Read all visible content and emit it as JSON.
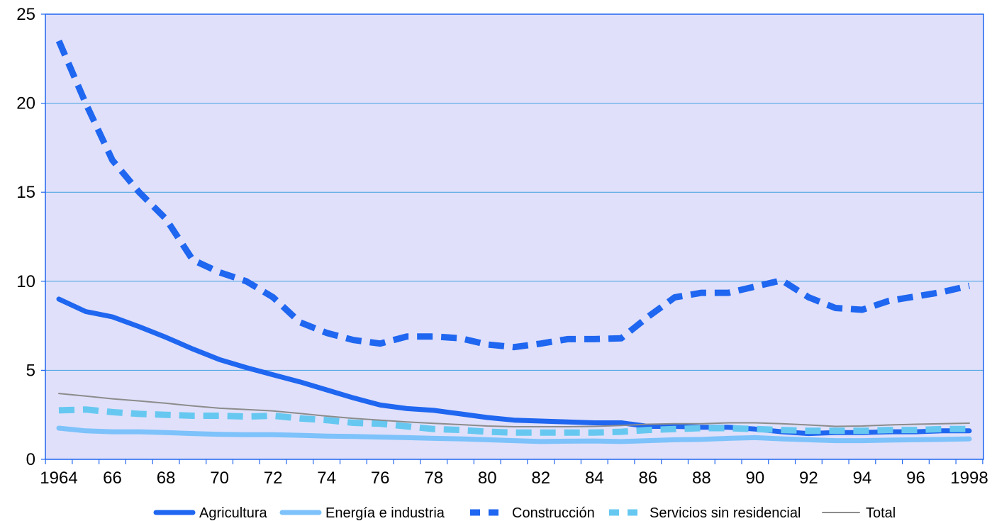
{
  "chart_data": {
    "type": "line",
    "title": "",
    "xlabel": "",
    "ylabel": "",
    "ylim": [
      0,
      25
    ],
    "yticks": [
      0,
      5,
      10,
      15,
      20,
      25
    ],
    "grid": "horizontal",
    "legend_position": "bottom",
    "plot_background": "#E0E0FA",
    "x": [
      1964,
      1965,
      1966,
      1967,
      1968,
      1969,
      1970,
      1971,
      1972,
      1973,
      1974,
      1975,
      1976,
      1977,
      1978,
      1979,
      1980,
      1981,
      1982,
      1983,
      1984,
      1985,
      1986,
      1987,
      1988,
      1989,
      1990,
      1991,
      1992,
      1993,
      1994,
      1995,
      1996,
      1997,
      1998
    ],
    "x_tick_labels": [
      "1964",
      "66",
      "68",
      "70",
      "72",
      "74",
      "76",
      "78",
      "80",
      "82",
      "84",
      "86",
      "88",
      "90",
      "92",
      "94",
      "96",
      "1998"
    ],
    "series": [
      {
        "name": "Agricultura",
        "color": "#1F66F0",
        "style": "solid-thick",
        "values": [
          9.0,
          8.3,
          8.0,
          7.45,
          6.85,
          6.2,
          5.6,
          5.15,
          4.75,
          4.35,
          3.9,
          3.45,
          3.05,
          2.85,
          2.75,
          2.55,
          2.35,
          2.2,
          2.15,
          2.1,
          2.05,
          2.05,
          1.85,
          1.85,
          1.8,
          1.8,
          1.7,
          1.55,
          1.45,
          1.5,
          1.5,
          1.55,
          1.55,
          1.6,
          1.6
        ]
      },
      {
        "name": "Energía e industria",
        "color": "#7DC2FA",
        "style": "solid-thick",
        "values": [
          1.75,
          1.6,
          1.55,
          1.55,
          1.5,
          1.45,
          1.4,
          1.38,
          1.38,
          1.35,
          1.3,
          1.28,
          1.25,
          1.22,
          1.18,
          1.15,
          1.1,
          1.05,
          1.0,
          1.02,
          1.03,
          1.0,
          1.05,
          1.1,
          1.12,
          1.18,
          1.22,
          1.15,
          1.1,
          1.05,
          1.05,
          1.08,
          1.1,
          1.12,
          1.15
        ]
      },
      {
        "name": "Construcción",
        "color": "#1F66F0",
        "style": "dashed-thick",
        "values": [
          23.5,
          20.0,
          16.8,
          15.0,
          13.5,
          11.2,
          10.5,
          10.0,
          9.1,
          7.7,
          7.1,
          6.7,
          6.5,
          6.9,
          6.9,
          6.8,
          6.45,
          6.3,
          6.5,
          6.75,
          6.75,
          6.8,
          8.0,
          9.1,
          9.35,
          9.35,
          9.7,
          10.05,
          9.1,
          8.5,
          8.4,
          8.9,
          9.15,
          9.4,
          9.75
        ]
      },
      {
        "name": "Servicios sin residencial",
        "color": "#66C8F0",
        "style": "dashed-thick",
        "values": [
          2.75,
          2.8,
          2.65,
          2.55,
          2.5,
          2.45,
          2.45,
          2.4,
          2.45,
          2.3,
          2.2,
          2.05,
          2.0,
          1.85,
          1.7,
          1.65,
          1.55,
          1.5,
          1.5,
          1.5,
          1.5,
          1.55,
          1.65,
          1.7,
          1.75,
          1.75,
          1.7,
          1.65,
          1.6,
          1.6,
          1.6,
          1.65,
          1.65,
          1.7,
          1.7
        ]
      },
      {
        "name": "Total",
        "color": "#8C8C8C",
        "style": "solid-thin",
        "values": [
          3.7,
          3.55,
          3.4,
          3.28,
          3.15,
          3.0,
          2.87,
          2.8,
          2.72,
          2.58,
          2.43,
          2.3,
          2.2,
          2.1,
          2.02,
          1.95,
          1.87,
          1.83,
          1.83,
          1.83,
          1.85,
          1.9,
          1.97,
          2.0,
          2.0,
          2.05,
          2.05,
          2.0,
          1.93,
          1.85,
          1.87,
          1.93,
          1.97,
          2.0,
          2.03
        ]
      }
    ]
  }
}
